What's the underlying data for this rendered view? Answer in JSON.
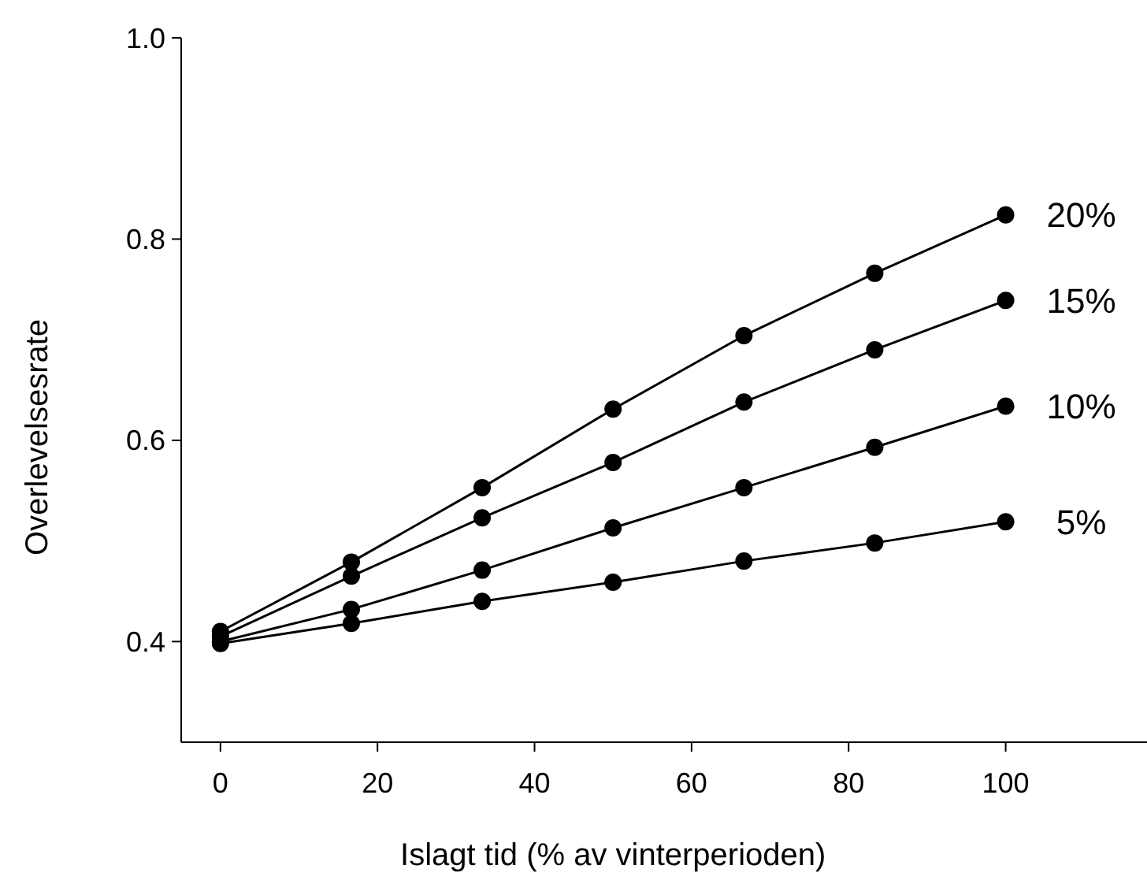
{
  "chart_data": {
    "type": "line",
    "xlabel": "Islagt tid (% av vinterperioden)",
    "ylabel": "Overlevelsesrate",
    "x": [
      0,
      16.67,
      33.33,
      50,
      66.67,
      83.33,
      100
    ],
    "series": [
      {
        "name": "20%",
        "color": "#000000",
        "values": [
          0.41,
          0.479,
          0.553,
          0.631,
          0.704,
          0.766,
          0.824
        ]
      },
      {
        "name": "15%",
        "color": "#000000",
        "values": [
          0.405,
          0.465,
          0.523,
          0.578,
          0.638,
          0.69,
          0.739
        ]
      },
      {
        "name": "10%",
        "color": "#000000",
        "values": [
          0.4,
          0.432,
          0.471,
          0.513,
          0.553,
          0.593,
          0.634
        ]
      },
      {
        "name": "5%",
        "color": "#000000",
        "values": [
          0.398,
          0.418,
          0.44,
          0.459,
          0.48,
          0.498,
          0.519
        ]
      }
    ],
    "xlim": [
      -5,
      118
    ],
    "xticks": [
      0,
      20,
      40,
      60,
      80,
      100
    ],
    "ylim": [
      0.3,
      1.0
    ],
    "yticks": [
      {
        "value": 0.4,
        "label": "0.4"
      },
      {
        "value": 0.6,
        "label": "0.6"
      },
      {
        "value": 0.8,
        "label": "0.8"
      },
      {
        "value": 1.0,
        "label": "1.0"
      }
    ],
    "grid": false,
    "legend": false,
    "marker": "circle",
    "line_style": "solid"
  }
}
